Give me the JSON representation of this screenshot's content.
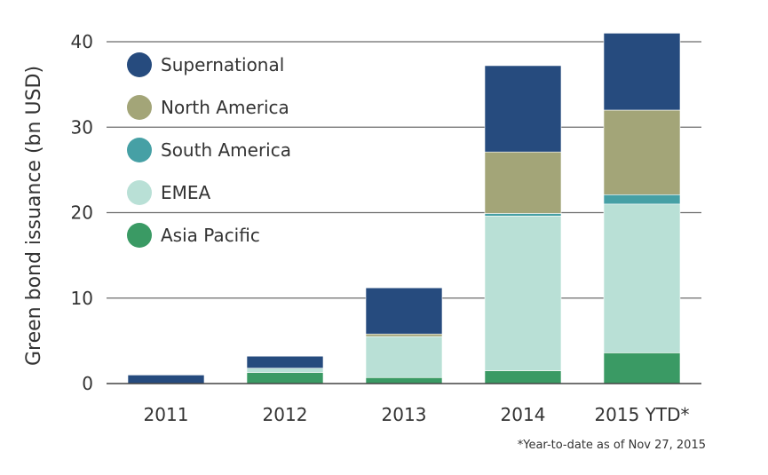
{
  "chart_data": {
    "type": "bar",
    "stacked": true,
    "title": "",
    "xlabel": "",
    "ylabel": "Green bond issuance (bn USD)",
    "ylim": [
      0,
      40
    ],
    "yticks": [
      0,
      10,
      20,
      30,
      40
    ],
    "grid": "horizontal",
    "legend_position": "top-left",
    "categories": [
      "2011",
      "2012",
      "2013",
      "2014",
      "2015 YTD*"
    ],
    "series": [
      {
        "name": "Asia Pacific",
        "color": "#3a9a64",
        "values": [
          0,
          1.3,
          0.7,
          1.5,
          3.6
        ]
      },
      {
        "name": "EMEA",
        "color": "#b9e0d6",
        "values": [
          0,
          0.5,
          4.8,
          18.1,
          17.4
        ]
      },
      {
        "name": "South America",
        "color": "#46a0a5",
        "values": [
          0,
          0,
          0,
          0.3,
          1.1
        ]
      },
      {
        "name": "North America",
        "color": "#a3a578",
        "values": [
          0,
          0,
          0.3,
          7.2,
          9.9
        ]
      },
      {
        "name": "Supernational",
        "color": "#264b7e",
        "values": [
          1.0,
          1.4,
          5.4,
          10.1,
          9.0
        ]
      }
    ],
    "legend_order": [
      "Supernational",
      "North America",
      "South America",
      "EMEA",
      "Asia Pacific"
    ],
    "footnote": "*Year-to-date as of Nov 27, 2015"
  }
}
